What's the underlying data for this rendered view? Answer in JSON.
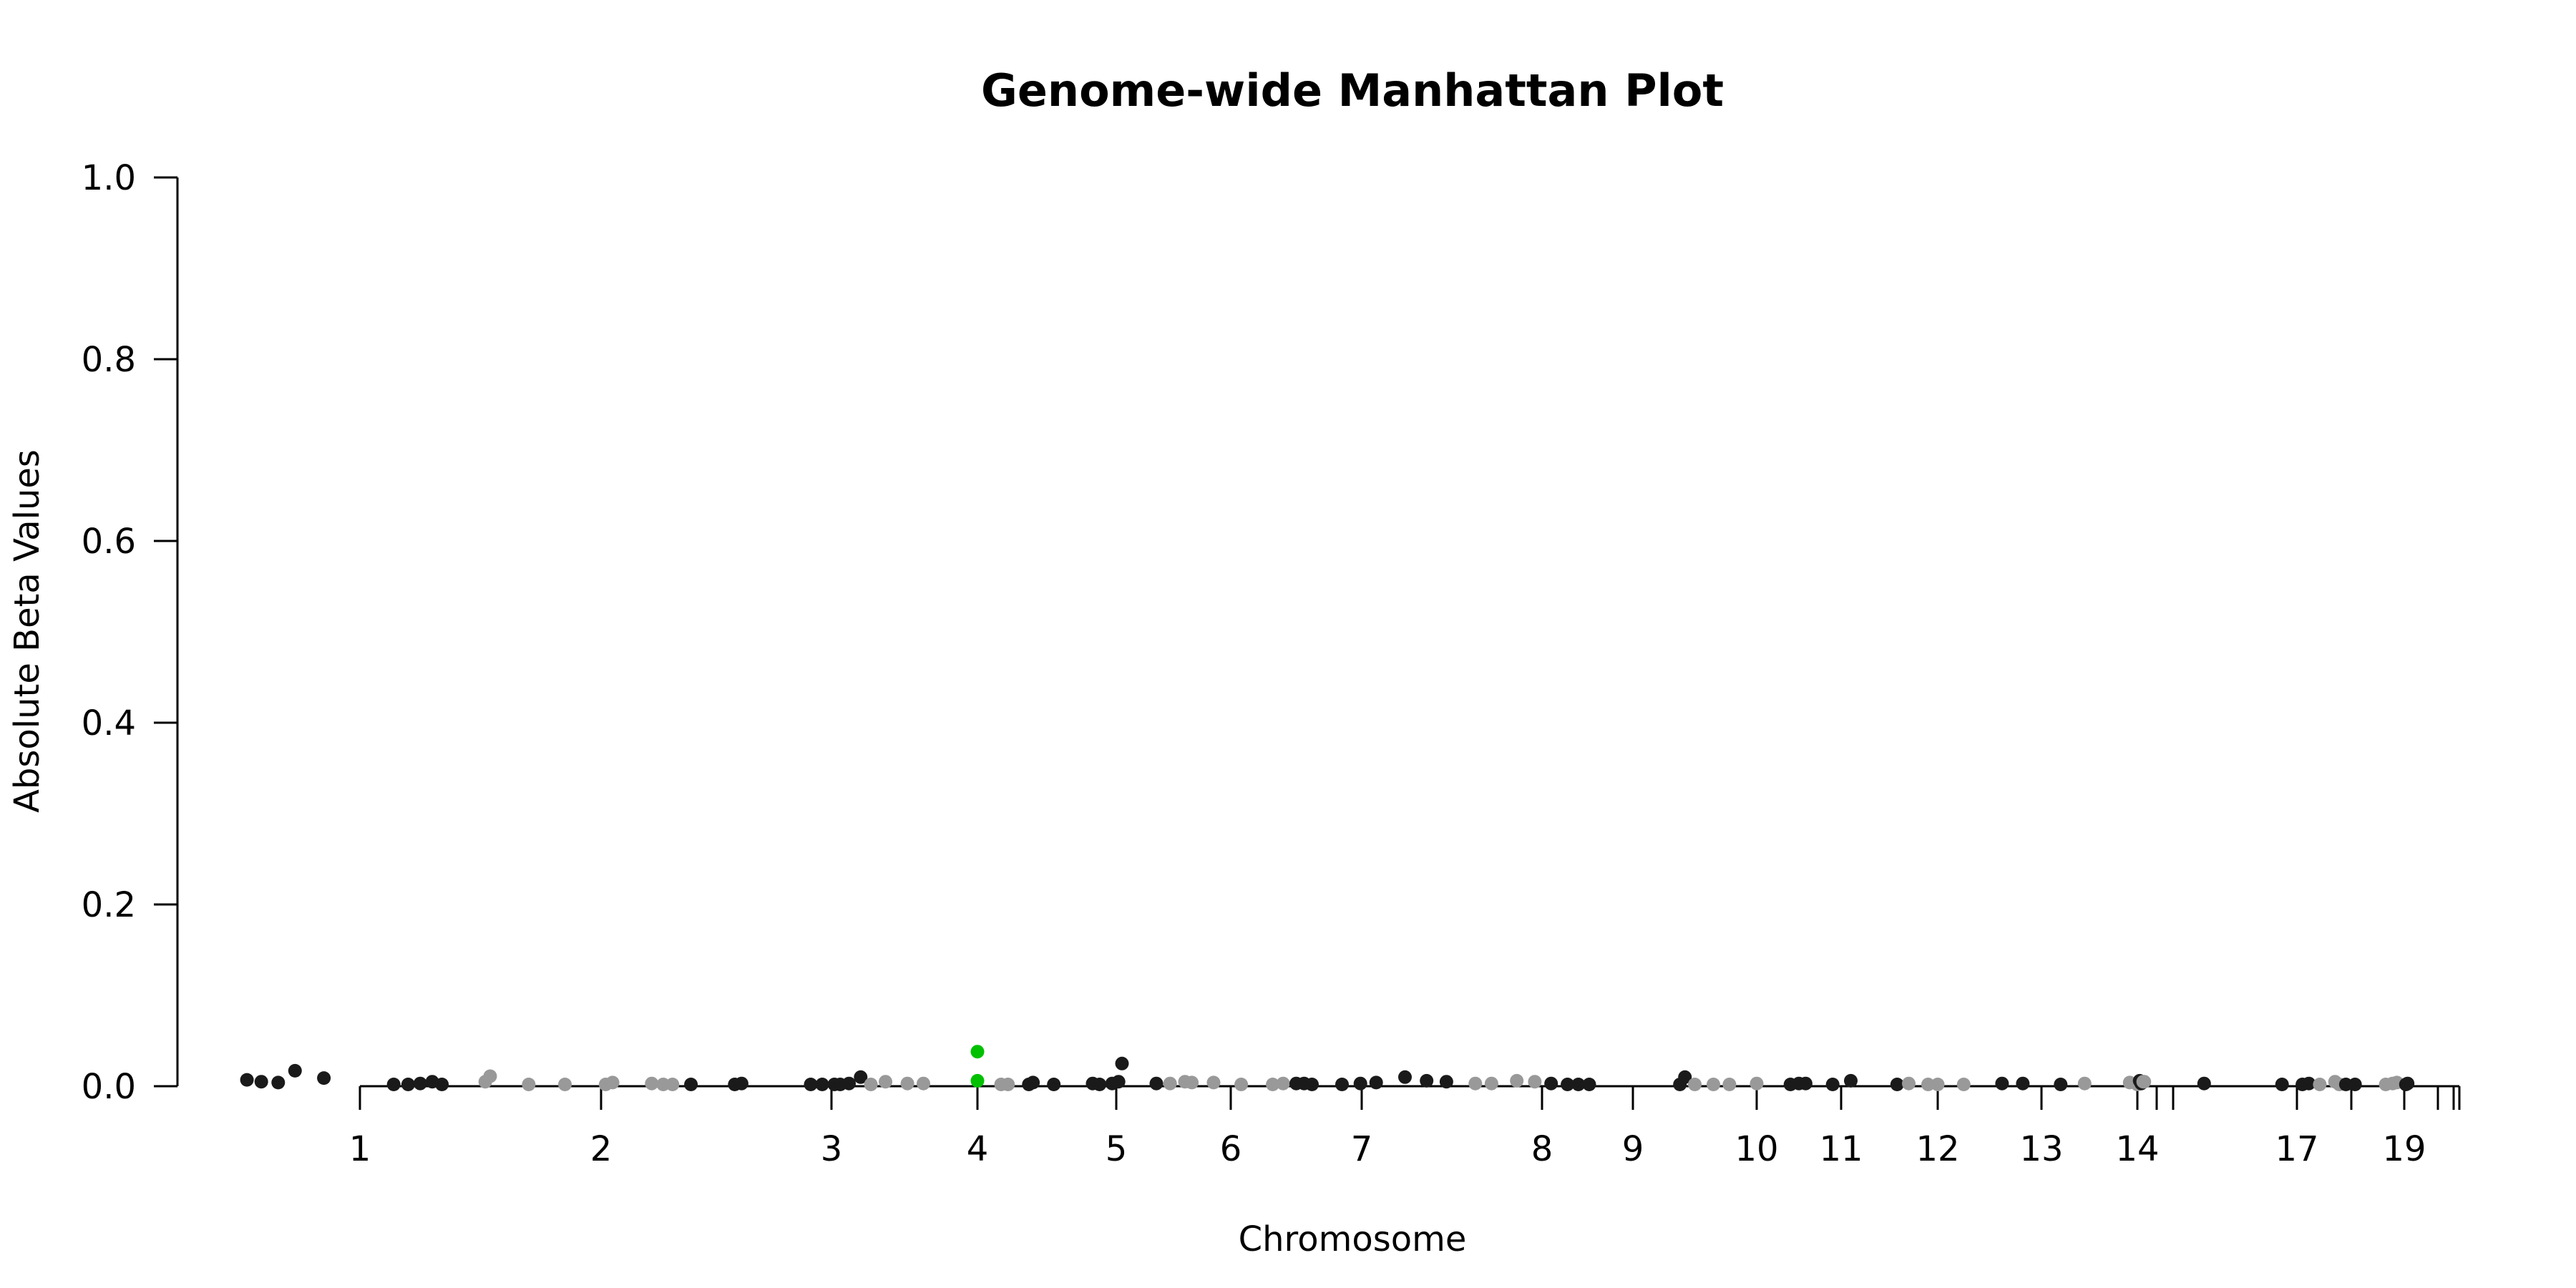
{
  "chart_data": {
    "type": "scatter",
    "title": "Genome-wide Manhattan Plot",
    "xlabel": "Chromosome",
    "ylabel": "Absolute Beta Values",
    "ylim": [
      0,
      1
    ],
    "y_ticks": [
      "0.0",
      "0.2",
      "0.4",
      "0.6",
      "0.8",
      "1.0"
    ],
    "y_tick_values": [
      0,
      0.2,
      0.4,
      0.6,
      0.8,
      1.0
    ],
    "x_tick_positions": [
      1,
      2,
      3,
      4,
      5,
      6,
      7,
      8,
      9,
      10,
      11,
      12,
      13,
      14,
      15,
      16,
      17,
      18,
      19,
      20,
      21,
      22
    ],
    "x_tick_labels": [
      "1",
      "2",
      "3",
      "4",
      "5",
      "6",
      "7",
      "8",
      "9",
      "10",
      "11",
      "12",
      "13",
      "14",
      "",
      "",
      "17",
      "",
      "19",
      "",
      "",
      ""
    ],
    "colors": {
      "odd": "#1a1a1a",
      "even": "#999999",
      "highlight": "#00c000"
    },
    "grid": false,
    "legend": "none",
    "points": [
      {
        "x": 0.53,
        "y": 0.007,
        "g": "odd"
      },
      {
        "x": 0.59,
        "y": 0.005,
        "g": "odd"
      },
      {
        "x": 0.66,
        "y": 0.004,
        "g": "odd"
      },
      {
        "x": 0.73,
        "y": 0.017,
        "g": "odd"
      },
      {
        "x": 0.85,
        "y": 0.009,
        "g": "odd"
      },
      {
        "x": 1.14,
        "y": 0.002,
        "g": "odd"
      },
      {
        "x": 1.2,
        "y": 0.002,
        "g": "odd"
      },
      {
        "x": 1.25,
        "y": 0.003,
        "g": "odd"
      },
      {
        "x": 1.3,
        "y": 0.005,
        "g": "odd"
      },
      {
        "x": 1.34,
        "y": 0.002,
        "g": "odd"
      },
      {
        "x": 1.52,
        "y": 0.005,
        "g": "even"
      },
      {
        "x": 1.54,
        "y": 0.011,
        "g": "even"
      },
      {
        "x": 1.7,
        "y": 0.002,
        "g": "even"
      },
      {
        "x": 1.85,
        "y": 0.002,
        "g": "even"
      },
      {
        "x": 2.02,
        "y": 0.002,
        "g": "even"
      },
      {
        "x": 2.05,
        "y": 0.004,
        "g": "even"
      },
      {
        "x": 2.22,
        "y": 0.003,
        "g": "even"
      },
      {
        "x": 2.27,
        "y": 0.002,
        "g": "even"
      },
      {
        "x": 2.31,
        "y": 0.002,
        "g": "even"
      },
      {
        "x": 2.39,
        "y": 0.002,
        "g": "odd"
      },
      {
        "x": 2.58,
        "y": 0.002,
        "g": "odd"
      },
      {
        "x": 2.61,
        "y": 0.003,
        "g": "odd"
      },
      {
        "x": 2.91,
        "y": 0.002,
        "g": "odd"
      },
      {
        "x": 2.96,
        "y": 0.002,
        "g": "odd"
      },
      {
        "x": 3.02,
        "y": 0.002,
        "g": "odd"
      },
      {
        "x": 3.06,
        "y": 0.002,
        "g": "odd"
      },
      {
        "x": 3.12,
        "y": 0.003,
        "g": "odd"
      },
      {
        "x": 3.2,
        "y": 0.01,
        "g": "odd"
      },
      {
        "x": 3.27,
        "y": 0.002,
        "g": "even"
      },
      {
        "x": 3.37,
        "y": 0.005,
        "g": "even"
      },
      {
        "x": 3.52,
        "y": 0.003,
        "g": "even"
      },
      {
        "x": 3.63,
        "y": 0.003,
        "g": "even"
      },
      {
        "x": 4.0,
        "y": 0.038,
        "g": "highlight"
      },
      {
        "x": 4.0,
        "y": 0.006,
        "g": "highlight"
      },
      {
        "x": 4.17,
        "y": 0.002,
        "g": "even"
      },
      {
        "x": 4.22,
        "y": 0.002,
        "g": "even"
      },
      {
        "x": 4.37,
        "y": 0.002,
        "g": "odd"
      },
      {
        "x": 4.4,
        "y": 0.004,
        "g": "odd"
      },
      {
        "x": 4.55,
        "y": 0.002,
        "g": "odd"
      },
      {
        "x": 4.83,
        "y": 0.003,
        "g": "odd"
      },
      {
        "x": 4.88,
        "y": 0.002,
        "g": "odd"
      },
      {
        "x": 4.97,
        "y": 0.003,
        "g": "odd"
      },
      {
        "x": 5.02,
        "y": 0.005,
        "g": "odd"
      },
      {
        "x": 5.05,
        "y": 0.025,
        "g": "odd"
      },
      {
        "x": 5.35,
        "y": 0.003,
        "g": "odd"
      },
      {
        "x": 5.47,
        "y": 0.003,
        "g": "even"
      },
      {
        "x": 5.6,
        "y": 0.005,
        "g": "even"
      },
      {
        "x": 5.66,
        "y": 0.004,
        "g": "even"
      },
      {
        "x": 5.85,
        "y": 0.004,
        "g": "even"
      },
      {
        "x": 6.08,
        "y": 0.002,
        "g": "even"
      },
      {
        "x": 6.32,
        "y": 0.002,
        "g": "even"
      },
      {
        "x": 6.4,
        "y": 0.003,
        "g": "even"
      },
      {
        "x": 6.5,
        "y": 0.003,
        "g": "odd"
      },
      {
        "x": 6.56,
        "y": 0.003,
        "g": "odd"
      },
      {
        "x": 6.62,
        "y": 0.002,
        "g": "odd"
      },
      {
        "x": 6.85,
        "y": 0.002,
        "g": "odd"
      },
      {
        "x": 6.99,
        "y": 0.003,
        "g": "odd"
      },
      {
        "x": 7.08,
        "y": 0.004,
        "g": "odd"
      },
      {
        "x": 7.24,
        "y": 0.01,
        "g": "odd"
      },
      {
        "x": 7.36,
        "y": 0.006,
        "g": "odd"
      },
      {
        "x": 7.47,
        "y": 0.005,
        "g": "odd"
      },
      {
        "x": 7.63,
        "y": 0.003,
        "g": "even"
      },
      {
        "x": 7.72,
        "y": 0.003,
        "g": "even"
      },
      {
        "x": 7.86,
        "y": 0.006,
        "g": "even"
      },
      {
        "x": 7.96,
        "y": 0.005,
        "g": "even"
      },
      {
        "x": 8.1,
        "y": 0.003,
        "g": "odd"
      },
      {
        "x": 8.28,
        "y": 0.002,
        "g": "odd"
      },
      {
        "x": 8.4,
        "y": 0.002,
        "g": "odd"
      },
      {
        "x": 8.52,
        "y": 0.002,
        "g": "odd"
      },
      {
        "x": 9.38,
        "y": 0.002,
        "g": "odd"
      },
      {
        "x": 9.42,
        "y": 0.01,
        "g": "odd"
      },
      {
        "x": 9.5,
        "y": 0.002,
        "g": "even"
      },
      {
        "x": 9.65,
        "y": 0.002,
        "g": "even"
      },
      {
        "x": 9.78,
        "y": 0.002,
        "g": "even"
      },
      {
        "x": 10.0,
        "y": 0.003,
        "g": "even"
      },
      {
        "x": 10.4,
        "y": 0.002,
        "g": "odd"
      },
      {
        "x": 10.5,
        "y": 0.003,
        "g": "odd"
      },
      {
        "x": 10.58,
        "y": 0.003,
        "g": "odd"
      },
      {
        "x": 10.9,
        "y": 0.002,
        "g": "odd"
      },
      {
        "x": 11.1,
        "y": 0.006,
        "g": "odd"
      },
      {
        "x": 11.58,
        "y": 0.002,
        "g": "odd"
      },
      {
        "x": 11.7,
        "y": 0.003,
        "g": "even"
      },
      {
        "x": 11.9,
        "y": 0.002,
        "g": "even"
      },
      {
        "x": 12.0,
        "y": 0.002,
        "g": "even"
      },
      {
        "x": 12.25,
        "y": 0.002,
        "g": "even"
      },
      {
        "x": 12.62,
        "y": 0.003,
        "g": "odd"
      },
      {
        "x": 12.82,
        "y": 0.003,
        "g": "odd"
      },
      {
        "x": 13.2,
        "y": 0.002,
        "g": "odd"
      },
      {
        "x": 13.45,
        "y": 0.003,
        "g": "even"
      },
      {
        "x": 13.92,
        "y": 0.004,
        "g": "even"
      },
      {
        "x": 14.0,
        "y": 0.002,
        "g": "even"
      },
      {
        "x": 14.12,
        "y": 0.006,
        "g": "odd"
      },
      {
        "x": 14.2,
        "y": 0.003,
        "g": "odd"
      },
      {
        "x": 14.3,
        "y": 0.005,
        "g": "even"
      },
      {
        "x": 14.36,
        "y": 0.005,
        "g": "even"
      },
      {
        "x": 16.25,
        "y": 0.003,
        "g": "odd"
      },
      {
        "x": 16.88,
        "y": 0.002,
        "g": "odd"
      },
      {
        "x": 17.1,
        "y": 0.002,
        "g": "odd"
      },
      {
        "x": 17.22,
        "y": 0.003,
        "g": "odd"
      },
      {
        "x": 17.42,
        "y": 0.002,
        "g": "even"
      },
      {
        "x": 17.7,
        "y": 0.005,
        "g": "even"
      },
      {
        "x": 17.78,
        "y": 0.002,
        "g": "even"
      },
      {
        "x": 17.9,
        "y": 0.002,
        "g": "odd"
      },
      {
        "x": 18.07,
        "y": 0.002,
        "g": "odd"
      },
      {
        "x": 18.65,
        "y": 0.002,
        "g": "even"
      },
      {
        "x": 18.78,
        "y": 0.003,
        "g": "even"
      },
      {
        "x": 18.86,
        "y": 0.004,
        "g": "even"
      },
      {
        "x": 19.05,
        "y": 0.002,
        "g": "odd"
      },
      {
        "x": 19.1,
        "y": 0.003,
        "g": "odd"
      }
    ]
  }
}
